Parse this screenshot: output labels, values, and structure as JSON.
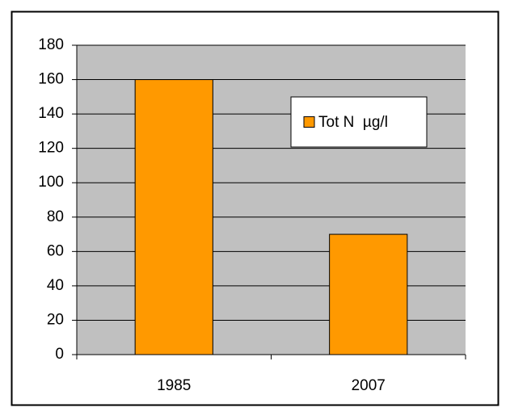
{
  "chart_data": {
    "type": "bar",
    "categories": [
      "1985",
      "2007"
    ],
    "series": [
      {
        "name": "Tot N  µg/l",
        "color": "#ff9900",
        "values": [
          160,
          70
        ]
      }
    ],
    "ylim": [
      0,
      180
    ],
    "yticks": [
      0,
      20,
      40,
      60,
      80,
      100,
      120,
      140,
      160,
      180
    ],
    "grid": true,
    "legend": "upper right"
  }
}
